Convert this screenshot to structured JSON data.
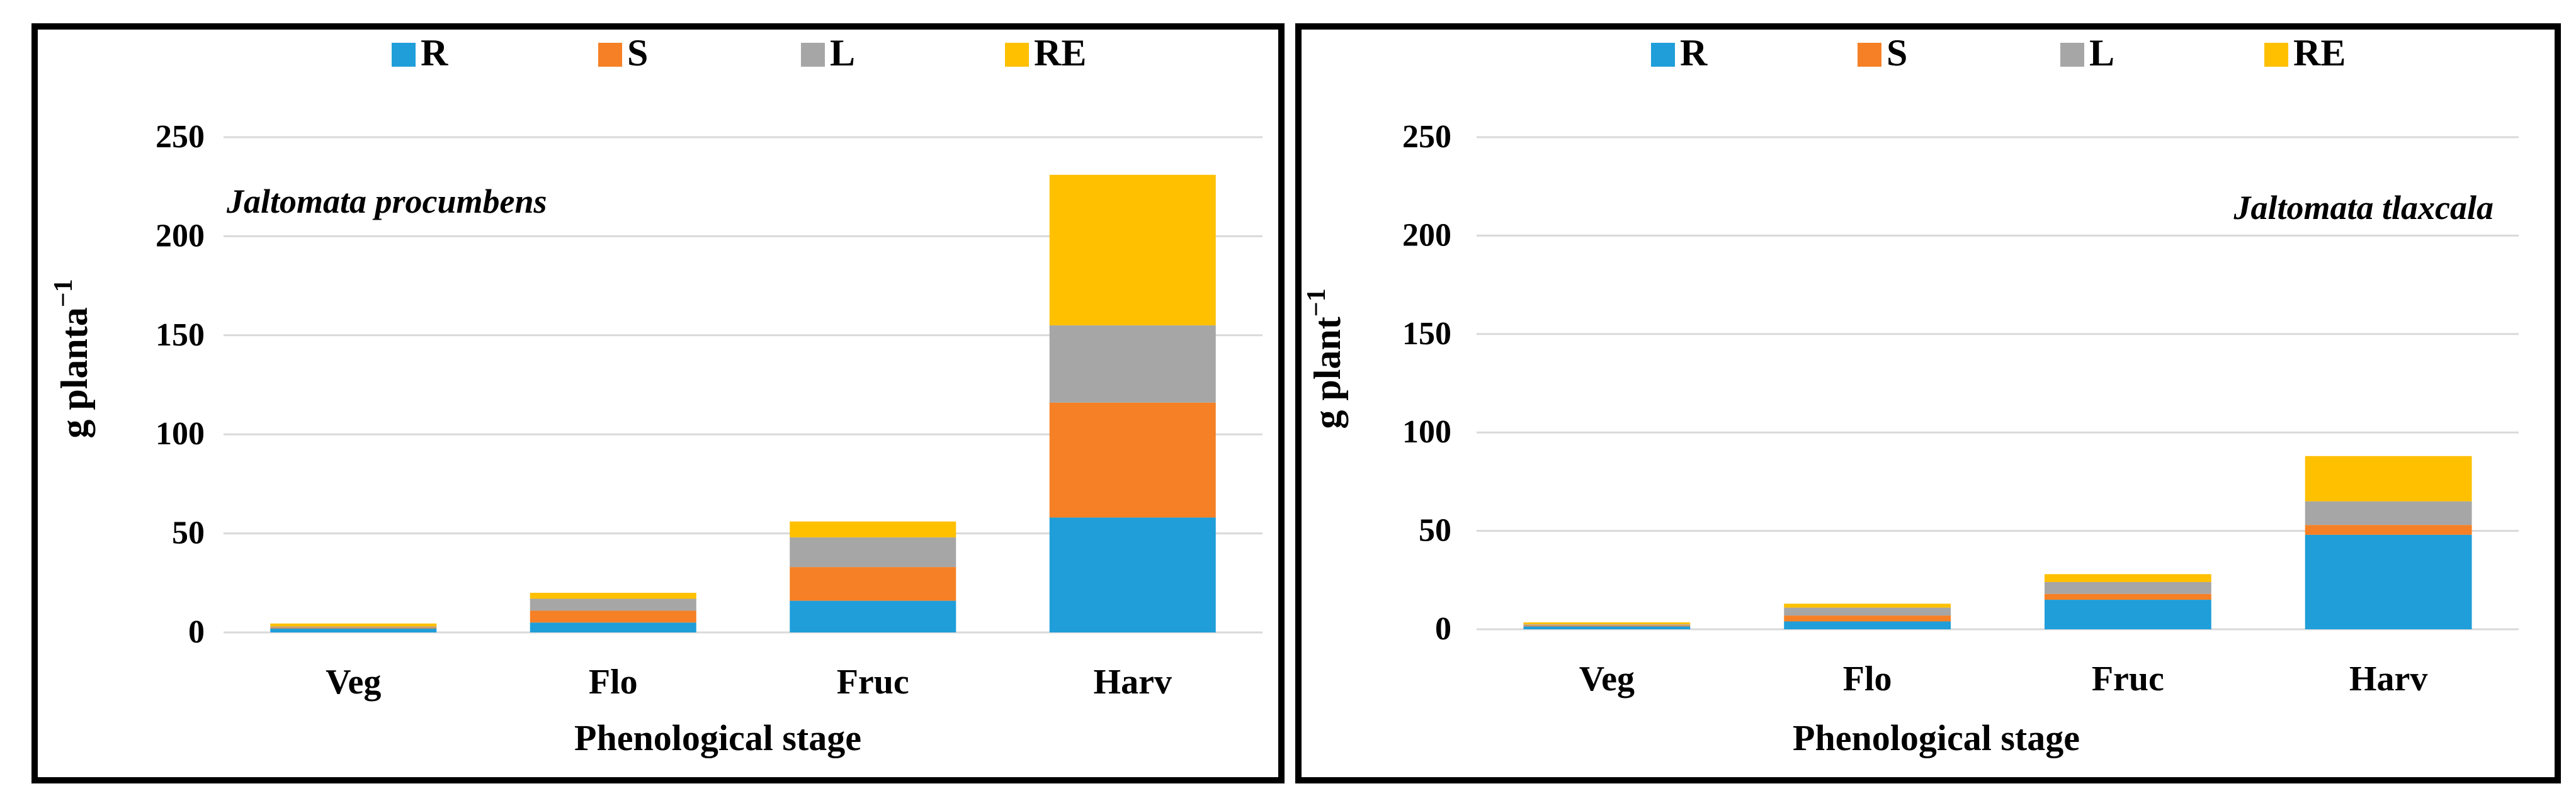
{
  "chart_data": [
    {
      "type": "bar",
      "stacked": true,
      "title": "Jaltomata procumbens",
      "xlabel": "Phenological stage",
      "ylabel": "g planta",
      "ylabel_sup": "−1",
      "categories": [
        "Veg",
        "Flo",
        "Fruc",
        "Harv"
      ],
      "ylim": [
        0,
        250
      ],
      "yticks": [
        "0",
        "50",
        "100",
        "150",
        "200",
        "250"
      ],
      "grid": true,
      "legend_position": "top",
      "series": [
        {
          "name": "R",
          "color": "#1F9ED9",
          "values": [
            2,
            5,
            16,
            58
          ]
        },
        {
          "name": "S",
          "color": "#F58025",
          "values": [
            0.5,
            6,
            17,
            58
          ]
        },
        {
          "name": "L",
          "color": "#A6A6A6",
          "values": [
            0.5,
            6,
            15,
            39
          ]
        },
        {
          "name": "RE",
          "color": "#FFC000",
          "values": [
            1.5,
            3,
            8,
            76
          ]
        }
      ]
    },
    {
      "type": "bar",
      "stacked": true,
      "title": "Jaltomata tlaxcala",
      "xlabel": "Phenological stage",
      "ylabel": "g plant",
      "ylabel_sup": "−1",
      "categories": [
        "Veg",
        "Flo",
        "Fruc",
        "Harv"
      ],
      "ylim": [
        0,
        250
      ],
      "yticks": [
        "0",
        "50",
        "100",
        "150",
        "200",
        "250"
      ],
      "grid": true,
      "legend_position": "top",
      "series": [
        {
          "name": "R",
          "color": "#1F9ED9",
          "values": [
            1.5,
            4,
            15,
            48
          ]
        },
        {
          "name": "S",
          "color": "#F58025",
          "values": [
            0.5,
            3,
            3,
            5
          ]
        },
        {
          "name": "L",
          "color": "#A6A6A6",
          "values": [
            0.5,
            4,
            6,
            12
          ]
        },
        {
          "name": "RE",
          "color": "#FFC000",
          "values": [
            1,
            2,
            4,
            23
          ]
        }
      ]
    }
  ]
}
